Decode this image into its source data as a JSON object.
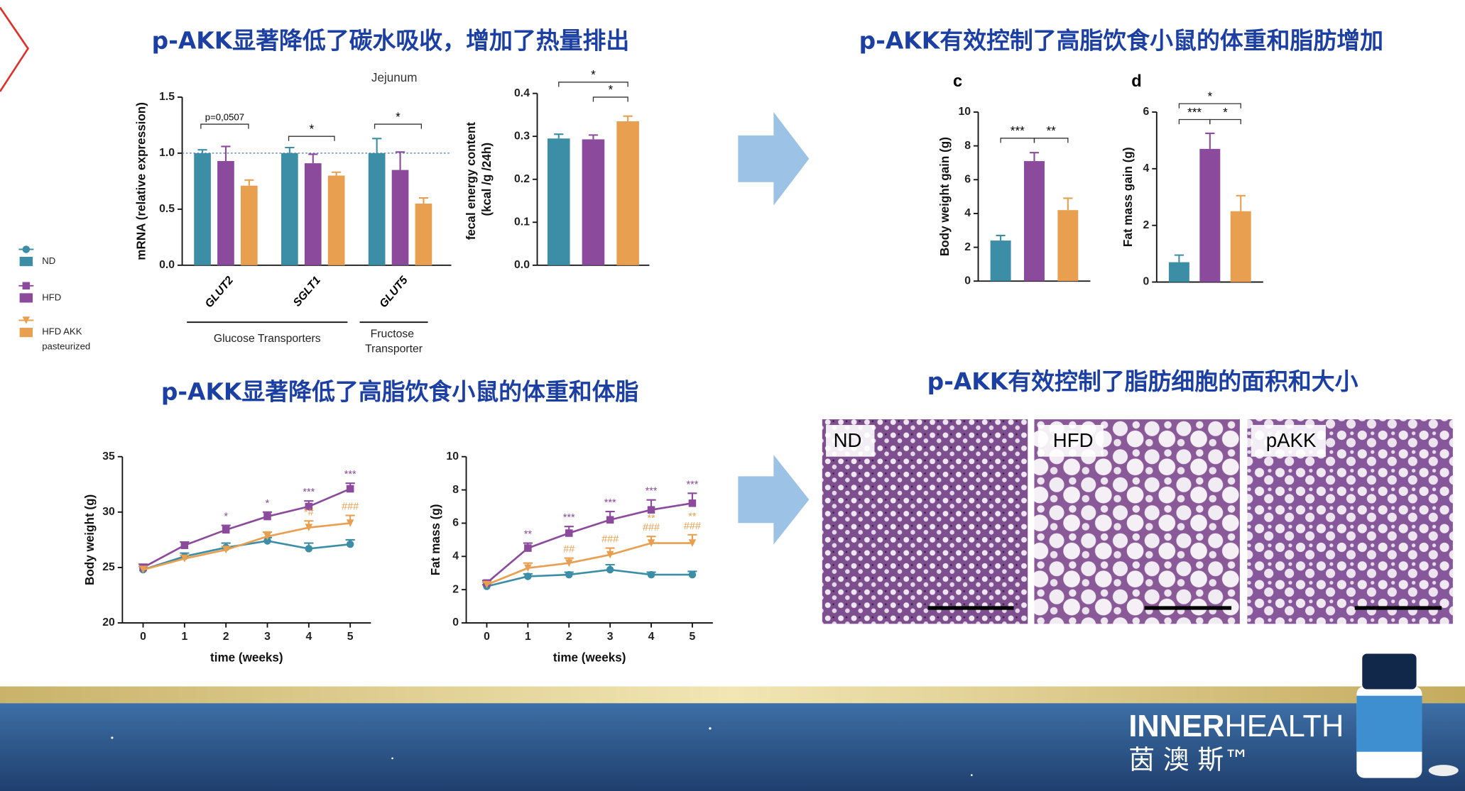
{
  "headings": [
    "p-AKK显著降低了碳水吸收，增加了热量排出",
    "p-AKK有效控制了高脂饮食小鼠的体重和脂肪增加",
    "p-AKK显著降低了高脂饮食小鼠的体重和体脂",
    "p-AKK有效控制了脂肪细胞的面积和大小"
  ],
  "chart_data": [
    {
      "type": "bar",
      "title": "Jejunum",
      "ylabel": "mRNA (relative expression)",
      "categories": [
        "GLUT2",
        "SGLT1",
        "GLUT5"
      ],
      "series": [
        {
          "name": "ND",
          "color": "#3b8ea5",
          "marker": "circle",
          "values": [
            1.0,
            1.0,
            1.0
          ],
          "errors": [
            0.03,
            0.05,
            0.13
          ]
        },
        {
          "name": "HFD",
          "color": "#8b4a9c",
          "marker": "square",
          "values": [
            0.93,
            0.91,
            0.85
          ],
          "errors": [
            0.13,
            0.08,
            0.16
          ]
        },
        {
          "name": "HFD AKK pasteurized",
          "color": "#e8a050",
          "marker": "triangle",
          "values": [
            0.71,
            0.8,
            0.55
          ],
          "errors": [
            0.05,
            0.03,
            0.05
          ]
        }
      ],
      "ylim": [
        0,
        1.5
      ],
      "yticks": [
        {
          "value": 0,
          "label": "0.0"
        },
        {
          "value": 0.5,
          "label": "0.5"
        },
        {
          "value": 1,
          "label": "1.0"
        },
        {
          "value": 1.5,
          "label": "1.5"
        }
      ],
      "reference_line": 1,
      "annotations": [
        "p=0,0507",
        "*",
        "*"
      ],
      "group_labels": [
        "Glucose Transporters",
        "Fructose Transporter"
      ],
      "legend": "left"
    },
    {
      "type": "bar",
      "ylabel": "fecal energy content (kcal /g /24h)",
      "categories": [
        null,
        null,
        null
      ],
      "values": [
        0.295,
        0.293,
        0.335
      ],
      "errors": [
        0.01,
        0.01,
        0.012
      ],
      "colors": [
        "#3b8ea5",
        "#8b4a9c",
        "#e8a050"
      ],
      "ylim": [
        0,
        0.4
      ],
      "yticks": [
        {
          "value": 0,
          "label": "0.0"
        },
        {
          "value": 0.1,
          "label": "0.1"
        },
        {
          "value": 0.2,
          "label": "0.2"
        },
        {
          "value": 0.3,
          "label": "0.3"
        },
        {
          "value": 0.4,
          "label": "0.4"
        }
      ],
      "annotations": [
        "*",
        "*"
      ]
    },
    {
      "type": "bar",
      "panel": "c",
      "ylabel": "Body weight gain (g)",
      "categories": [
        null,
        null,
        null
      ],
      "values": [
        2.4,
        7.1,
        4.2
      ],
      "errors": [
        0.3,
        0.5,
        0.7
      ],
      "colors": [
        "#3b8ea5",
        "#8b4a9c",
        "#e8a050"
      ],
      "ylim": [
        0,
        10
      ],
      "yticks": [
        0,
        2,
        4,
        6,
        8,
        10
      ],
      "annotations": [
        "***",
        "**"
      ]
    },
    {
      "type": "bar",
      "panel": "d",
      "ylabel": "Fat mass gain (g)",
      "categories": [
        null,
        null,
        null
      ],
      "values": [
        0.7,
        4.7,
        2.5
      ],
      "errors": [
        0.25,
        0.55,
        0.55
      ],
      "colors": [
        "#3b8ea5",
        "#8b4a9c",
        "#e8a050"
      ],
      "ylim": [
        0,
        6
      ],
      "yticks": [
        0,
        2,
        4,
        6
      ],
      "annotations": [
        "*",
        "***",
        "*"
      ]
    },
    {
      "type": "line",
      "xlabel": "time (weeks)",
      "ylabel": "Body weight (g)",
      "x": [
        0,
        1,
        2,
        3,
        4,
        5
      ],
      "xlim": [
        -0.5,
        5.5
      ],
      "xticks": [
        0,
        1,
        2,
        3,
        4,
        5
      ],
      "ylim": [
        20,
        35
      ],
      "yticks": [
        20,
        25,
        30,
        35
      ],
      "series": [
        {
          "name": "ND",
          "color": "#3b8ea5",
          "marker": "circle",
          "values": [
            24.8,
            26.0,
            26.8,
            27.4,
            26.7,
            27.1
          ],
          "errors": [
            0.3,
            0.3,
            0.4,
            0.3,
            0.5,
            0.4
          ],
          "annotations": [
            null,
            null,
            null,
            null,
            null,
            null
          ]
        },
        {
          "name": "HFD",
          "color": "#8b4a9c",
          "marker": "square",
          "values": [
            25.0,
            27.0,
            28.4,
            29.6,
            30.5,
            32.1
          ],
          "errors": [
            0.3,
            0.3,
            0.4,
            0.4,
            0.5,
            0.5
          ],
          "annotations": [
            null,
            null,
            [
              "*"
            ],
            [
              "*"
            ],
            [
              "***"
            ],
            [
              "***"
            ]
          ]
        },
        {
          "name": "HFD AKK pasteurized",
          "color": "#e8a050",
          "marker": "triangle",
          "values": [
            24.8,
            25.8,
            26.6,
            27.8,
            28.6,
            29.0
          ],
          "errors": [
            0.3,
            0.3,
            0.3,
            0.4,
            0.6,
            0.7
          ],
          "annotations": [
            null,
            null,
            null,
            null,
            [
              "*#"
            ],
            [
              "###"
            ]
          ]
        }
      ]
    },
    {
      "type": "line",
      "xlabel": "time (weeks)",
      "ylabel": "Fat mass (g)",
      "x": [
        0,
        1,
        2,
        3,
        4,
        5
      ],
      "xlim": [
        -0.5,
        5.5
      ],
      "xticks": [
        0,
        1,
        2,
        3,
        4,
        5
      ],
      "ylim": [
        0,
        10
      ],
      "yticks": [
        0,
        2,
        4,
        6,
        8,
        10
      ],
      "series": [
        {
          "name": "ND",
          "color": "#3b8ea5",
          "marker": "circle",
          "values": [
            2.2,
            2.8,
            2.9,
            3.2,
            2.9,
            2.9
          ],
          "errors": [
            0.1,
            0.15,
            0.15,
            0.3,
            0.15,
            0.2
          ],
          "annotations": [
            null,
            null,
            null,
            null,
            null,
            null
          ]
        },
        {
          "name": "HFD",
          "color": "#8b4a9c",
          "marker": "square",
          "values": [
            2.4,
            4.5,
            5.4,
            6.2,
            6.8,
            7.2
          ],
          "errors": [
            0.15,
            0.3,
            0.4,
            0.5,
            0.6,
            0.6
          ],
          "annotations": [
            null,
            [
              "**"
            ],
            [
              "***"
            ],
            [
              "***"
            ],
            [
              "***"
            ],
            [
              "***"
            ]
          ]
        },
        {
          "name": "HFD AKK pasteurized",
          "color": "#e8a050",
          "marker": "triangle",
          "values": [
            2.3,
            3.3,
            3.6,
            4.1,
            4.8,
            4.8
          ],
          "errors": [
            0.15,
            0.3,
            0.3,
            0.4,
            0.4,
            0.5
          ],
          "annotations": [
            null,
            null,
            [
              "##"
            ],
            [
              "###"
            ],
            [
              "**",
              "###"
            ],
            [
              "**",
              "###"
            ]
          ]
        }
      ]
    }
  ],
  "histology": {
    "labels": [
      "ND",
      "HFD",
      "pAKK"
    ]
  },
  "footer": {
    "brand_bold": "INNER",
    "brand_light": "HEALTH",
    "chinese": "茵 澳 斯™"
  }
}
